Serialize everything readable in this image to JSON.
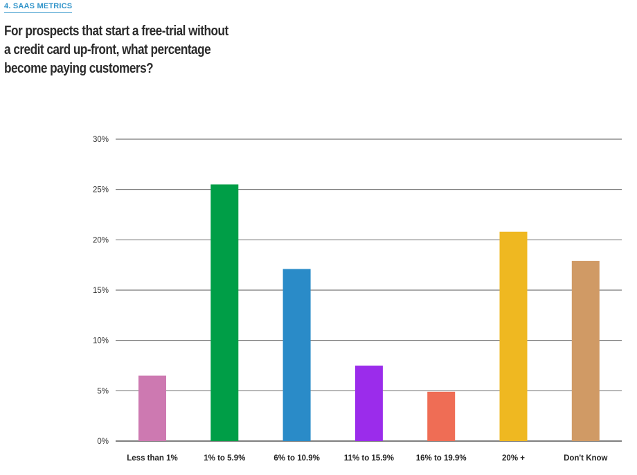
{
  "header": {
    "section_tag": "4. SAAS METRICS",
    "question_lines": [
      "For prospects that start a free-trial without",
      "a credit card up-front, what percentage",
      "become paying customers?"
    ]
  },
  "chart_data": {
    "type": "bar",
    "categories": [
      "Less than 1%",
      "1% to 5.9%",
      "6% to 10.9%",
      "11% to 15.9%",
      "16% to 19.9%",
      "20% +",
      "Don't Know"
    ],
    "values": [
      6.5,
      25.5,
      17.1,
      7.5,
      4.9,
      20.8,
      17.9
    ],
    "colors": [
      "#cd79b1",
      "#009e47",
      "#2a8bc8",
      "#9b2ceb",
      "#ef6d55",
      "#efb821",
      "#d09a65"
    ],
    "ylim": [
      0,
      30
    ],
    "yticks": [
      0,
      5,
      10,
      15,
      20,
      25,
      30
    ],
    "ytick_labels": [
      "0%",
      "5%",
      "10%",
      "15%",
      "20%",
      "25%",
      "30%"
    ],
    "grid": true
  }
}
